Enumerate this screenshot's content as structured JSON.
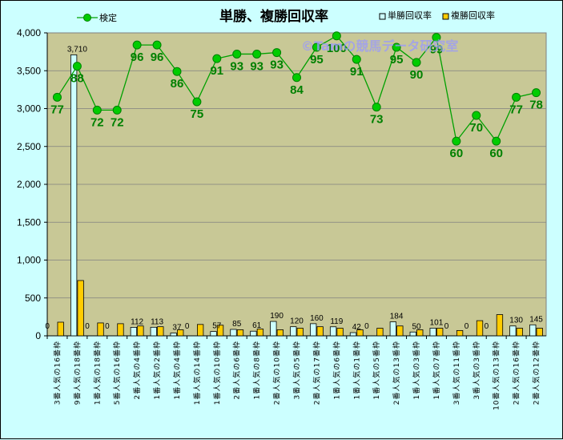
{
  "chart_data": {
    "type": "bar",
    "title": "単勝、複勝回収率",
    "watermark": "©Tamの競馬データ研究室",
    "ylim": [
      0,
      4000
    ],
    "yticks": [
      "0",
      "500",
      "1,000",
      "1,500",
      "2,000",
      "2,500",
      "3,000",
      "3,500",
      "4,000"
    ],
    "ytick_values": [
      0,
      500,
      1000,
      1500,
      2000,
      2500,
      3000,
      3500,
      4000
    ],
    "grid": true,
    "legend_position": "top",
    "categories": [
      "3番人気の16番枠",
      "9番人気の18番枠",
      "1番人気の18番枠",
      "5番人気の16番枠",
      "2番人気の4番枠",
      "1番人気の2番枠",
      "1番人気の4番枠",
      "1番人気の14番枠",
      "1番人気の10番枠",
      "2番人気の6番枠",
      "1番人気の8番枠",
      "2番人気の10番枠",
      "3番人気の5番枠",
      "2番人気の17番枠",
      "1番人気の6番枠",
      "1番人気の1番枠",
      "1番人気の5番枠",
      "2番人気の13番枠",
      "1番人気の3番枠",
      "1番人気の7番枠",
      "3番人気の11番枠",
      "3番人気の3番枠",
      "10番人気の13番枠",
      "2番人気の16番枠",
      "2番人気の12番枠"
    ],
    "series": [
      {
        "name": "単勝回収率",
        "type": "bar",
        "color": "#ccffff",
        "values": [
          0,
          3710,
          0,
          0,
          112,
          113,
          37,
          0,
          57,
          85,
          61,
          190,
          120,
          160,
          119,
          42,
          0,
          184,
          50,
          101,
          0,
          0,
          0,
          130,
          145
        ],
        "labels": [
          "0",
          "3,710",
          "0",
          "0",
          "112",
          "113",
          "37",
          "0",
          "57",
          "85",
          "61",
          "190",
          "120",
          "160",
          "119",
          "42",
          "0",
          "184",
          "50",
          "101",
          "0",
          "0",
          "0",
          "130",
          "145"
        ]
      },
      {
        "name": "複勝回収率",
        "type": "bar",
        "color": "#ffcc00",
        "values": [
          180,
          730,
          170,
          160,
          130,
          120,
          80,
          150,
          140,
          80,
          90,
          80,
          100,
          120,
          100,
          80,
          100,
          130,
          80,
          100,
          70,
          200,
          280,
          100,
          100
        ]
      },
      {
        "name": "検定",
        "type": "line",
        "color": "#00a000",
        "values": [
          77,
          88,
          72,
          72,
          96,
          96,
          86,
          75,
          91,
          93,
          93,
          93,
          84,
          95,
          100,
          91,
          73,
          95,
          90,
          99,
          60,
          70,
          60,
          77,
          78
        ],
        "plot_values": [
          3150,
          3560,
          2980,
          2980,
          3840,
          3840,
          3490,
          3090,
          3660,
          3720,
          3720,
          3740,
          3410,
          3810,
          3960,
          3650,
          3020,
          3810,
          3610,
          3940,
          2570,
          2910,
          2570,
          3150,
          3210
        ],
        "labels": [
          "77",
          "88",
          "72",
          "72",
          "96",
          "96",
          "86",
          "75",
          "91",
          "93",
          "93",
          "93",
          "84",
          "95",
          "100",
          "91",
          "73",
          "95",
          "90",
          "99",
          "60",
          "70",
          "60",
          "77",
          "78"
        ]
      }
    ]
  }
}
